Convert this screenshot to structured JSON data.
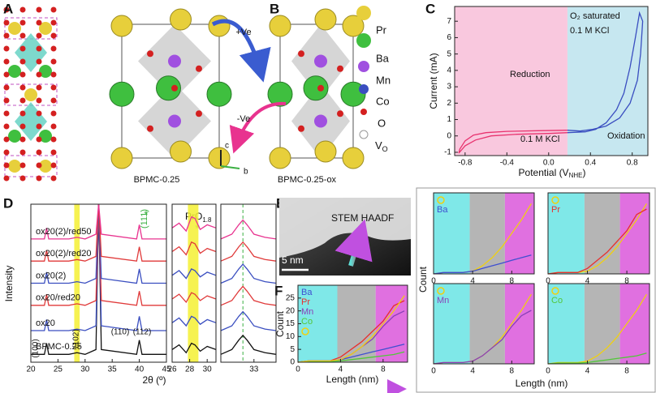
{
  "figure": {
    "panel_labels": [
      "A",
      "B",
      "C",
      "D",
      "E",
      "F"
    ],
    "structures": [
      "BPMC-0.25",
      "BPMC-0.25-ox"
    ],
    "arrows": [
      "+Ve",
      "-Ve"
    ],
    "axes": [
      "c",
      "b"
    ],
    "elements": [
      "Pr",
      "Ba",
      "Mn",
      "Co",
      "O"
    ],
    "vacancy": {
      "main": "V",
      "sub": "O"
    },
    "stem": "STEM HAADF",
    "scale": "5 nm",
    "d_labels": {
      "plane": "(111)",
      "star": "*",
      "phase": "PrO",
      "phase_sub": "1.8",
      "star2": "*"
    },
    "right_panel": {
      "ylabel": "Count",
      "xlabel": "Length (nm)"
    }
  },
  "chart_data": [
    {
      "type": "line",
      "ylabel": "Current (mA)",
      "xlabel": "Potential (V",
      "xlabel_sub": "NHE",
      "xlabel_end": ")",
      "xlim": [
        -0.9,
        0.95
      ],
      "ylim": [
        -1.2,
        7.9
      ],
      "xticks": [
        -0.8,
        -0.4,
        {
          "value": 0,
          "label": "0.0"
        },
        0.4,
        0.8
      ],
      "yticks": [
        -1,
        0,
        1,
        2,
        3,
        4,
        5,
        6,
        7
      ],
      "regions": [
        {
          "range": [
            -0.9,
            0.18
          ],
          "color": "#f9c8de"
        },
        {
          "range": [
            0.18,
            0.95
          ],
          "color": "#c6e7f0"
        }
      ],
      "annotations": [
        "Reduction",
        "Oxidation",
        "0.1 M KCl",
        "O₂ saturated",
        "0.1 M KCl"
      ],
      "series": [
        {
          "color": "#e8336f",
          "x": [
            0.18,
            -0.1,
            -0.4,
            -0.6,
            -0.72,
            -0.8,
            -0.85,
            -0.86,
            -0.8,
            -0.7,
            -0.55,
            -0.3,
            0,
            0.18
          ],
          "values": [
            0.35,
            0.32,
            0.28,
            0.2,
            0.05,
            -0.3,
            -0.8,
            -1.05,
            -0.6,
            -0.25,
            0.0,
            0.1,
            0.15,
            0.2
          ]
        },
        {
          "color": "#3a4ec0",
          "x": [
            0.18,
            0.35,
            0.45,
            0.55,
            0.65,
            0.72,
            0.78,
            0.83,
            0.87,
            0.9,
            0.88,
            0.85,
            0.78,
            0.68,
            0.55,
            0.42,
            0.3,
            0.18
          ],
          "values": [
            0.2,
            0.25,
            0.4,
            0.8,
            1.6,
            2.6,
            4.2,
            6.0,
            7.5,
            7.0,
            5.0,
            3.4,
            2.0,
            1.1,
            0.6,
            0.4,
            0.3,
            0.35
          ]
        }
      ]
    },
    {
      "type": "line",
      "ylabel": "Intensity",
      "xlabel": "2θ (º)",
      "xlim": [
        20,
        45
      ],
      "ylim": [
        0,
        100
      ],
      "xticks": [
        20,
        25,
        30,
        35,
        40,
        45
      ],
      "highlight": {
        "range": [
          28,
          29
        ],
        "color": "#f5f033"
      },
      "peak_labels": [
        "(100)",
        "(102)",
        "(110)",
        "(112)"
      ],
      "series_labels": true,
      "x": [
        20,
        22.5,
        22.9,
        23.3,
        27,
        28.5,
        30,
        32,
        32.5,
        33,
        39.5,
        40,
        40.5,
        45
      ],
      "series": [
        {
          "name": "BPMC-0.25",
          "color": "#111111",
          "values": [
            5,
            5,
            12,
            5,
            5,
            6,
            5,
            8,
            100,
            8,
            5,
            14,
            5,
            5
          ]
        },
        {
          "name": "ox20",
          "color": "#3a4ec0",
          "values": [
            20,
            20,
            27,
            20,
            20,
            21,
            20,
            23,
            100,
            23,
            20,
            29,
            20,
            20
          ]
        },
        {
          "name": "ox20/red20",
          "color": "#e03a3a",
          "values": [
            36,
            36,
            43,
            36,
            36,
            37,
            36,
            39,
            100,
            39,
            36,
            45,
            36,
            36
          ]
        },
        {
          "name": "ox20(2)",
          "color": "#3a4ec0",
          "values": [
            50,
            50,
            57,
            50,
            50,
            51,
            50,
            53,
            100,
            53,
            50,
            59,
            50,
            50
          ]
        },
        {
          "name": "ox20(2)/red20",
          "color": "#e03a3a",
          "values": [
            64,
            64,
            71,
            64,
            64,
            65,
            64,
            67,
            100,
            67,
            64,
            73,
            64,
            64
          ]
        },
        {
          "name": "ox20(2)/red50",
          "color": "#e8338f",
          "values": [
            78,
            78,
            85,
            78,
            78,
            79,
            78,
            81,
            100,
            81,
            78,
            87,
            78,
            78
          ]
        }
      ]
    },
    {
      "type": "line",
      "xlim": [
        26,
        31
      ],
      "ylim": [
        0,
        100
      ],
      "xticks": [
        26,
        28,
        30
      ],
      "highlight": {
        "range": [
          27.8,
          29
        ],
        "color": "#f5f033"
      },
      "x": [
        26,
        26.8,
        27.6,
        28.2,
        28.6,
        29.2,
        30,
        31
      ],
      "series": [
        {
          "color": "#111111",
          "values": [
            8,
            11,
            6,
            12,
            11,
            7,
            10,
            8
          ]
        },
        {
          "color": "#3a4ec0",
          "values": [
            25,
            28,
            23,
            29,
            28,
            24,
            27,
            25
          ]
        },
        {
          "color": "#e03a3a",
          "values": [
            40,
            43,
            38,
            44,
            43,
            39,
            42,
            40
          ]
        },
        {
          "color": "#3a4ec0",
          "values": [
            55,
            58,
            53,
            59,
            58,
            54,
            57,
            55
          ]
        },
        {
          "color": "#e03a3a",
          "values": [
            70,
            73,
            68,
            76,
            75,
            69,
            72,
            70
          ]
        },
        {
          "color": "#e8338f",
          "values": [
            85,
            88,
            83,
            92,
            91,
            84,
            87,
            85
          ]
        }
      ]
    },
    {
      "type": "line",
      "xlim": [
        31.8,
        33.8
      ],
      "ylim": [
        0,
        100
      ],
      "xticks": [
        33
      ],
      "reference_line": {
        "value": 32.6,
        "color": "#3cb043"
      },
      "x": [
        31.8,
        32.2,
        32.45,
        32.6,
        32.75,
        33.0,
        33.4,
        33.8
      ],
      "series": [
        {
          "color": "#111111",
          "values": [
            5,
            8,
            14,
            17,
            14,
            8,
            6,
            5
          ]
        },
        {
          "color": "#3a4ec0",
          "values": [
            20,
            23,
            29,
            32,
            29,
            23,
            21,
            20
          ]
        },
        {
          "color": "#e03a3a",
          "values": [
            36,
            39,
            45,
            48,
            45,
            39,
            37,
            36
          ]
        },
        {
          "color": "#3a4ec0",
          "values": [
            50,
            53,
            59,
            62,
            59,
            53,
            51,
            50
          ]
        },
        {
          "color": "#e03a3a",
          "values": [
            64,
            67,
            73,
            76,
            73,
            67,
            65,
            64
          ]
        },
        {
          "color": "#e8338f",
          "values": [
            78,
            81,
            87,
            90,
            87,
            81,
            79,
            78
          ]
        }
      ]
    },
    {
      "type": "line",
      "ylabel": "Count",
      "xlabel": "Length (nm)",
      "xlim": [
        0,
        10.3
      ],
      "ylim": [
        0,
        30
      ],
      "xticks": [
        0,
        4,
        8
      ],
      "yticks": [
        0,
        5,
        10,
        15,
        20,
        25
      ],
      "legend": true,
      "regions": [
        {
          "range": [
            0,
            3.7
          ],
          "color": "#7fe8e8"
        },
        {
          "range": [
            3.7,
            7.3
          ],
          "color": "#b5b5b5"
        },
        {
          "range": [
            7.3,
            10.3
          ],
          "color": "#e070e0"
        }
      ],
      "x": [
        0,
        1,
        2,
        3,
        4,
        5,
        6,
        7,
        8,
        9,
        10
      ],
      "series": [
        {
          "name": "Ba",
          "color": "#3f4fd0",
          "values": [
            0,
            0.5,
            0.5,
            0.5,
            1,
            2,
            3,
            4,
            5,
            6,
            7
          ]
        },
        {
          "name": "Pr",
          "color": "#e8302e",
          "values": [
            0,
            0.5,
            0.5,
            0.5,
            2,
            5,
            8,
            12,
            16,
            22,
            24
          ]
        },
        {
          "name": "Mn",
          "color": "#8a3fb8",
          "values": [
            0,
            0.5,
            0.5,
            0.5,
            1,
            3,
            6,
            9,
            14,
            18,
            20
          ]
        },
        {
          "name": "Co",
          "color": "#52c73a",
          "values": [
            0,
            0.3,
            0.3,
            0.3,
            0.5,
            1,
            1.5,
            2,
            2.5,
            3,
            4
          ]
        },
        {
          "color": "#f0d010",
          "values": [
            0,
            0.5,
            0.5,
            0.5,
            1,
            3,
            6,
            10,
            15,
            20,
            26
          ]
        }
      ]
    },
    {
      "type": "line",
      "xlim": [
        0,
        10.3
      ],
      "ylim": [
        0,
        30
      ],
      "xticks": [
        0,
        4,
        8
      ],
      "legend": true,
      "regions": [
        {
          "range": [
            0,
            3.7
          ],
          "color": "#7fe8e8"
        },
        {
          "range": [
            3.7,
            7.3
          ],
          "color": "#b5b5b5"
        },
        {
          "range": [
            7.3,
            10.3
          ],
          "color": "#e070e0"
        }
      ],
      "x": [
        0,
        1,
        2,
        3,
        4,
        5,
        6,
        7,
        8,
        9,
        10
      ],
      "series": [
        {
          "color": "#f0d010",
          "values": [
            0,
            0.5,
            0.5,
            0.5,
            1,
            3,
            6,
            10,
            15,
            20,
            26
          ]
        },
        {
          "name": "Ba",
          "color": "#3f4fd0",
          "values": [
            0,
            0.5,
            0.5,
            0.5,
            1,
            2,
            3,
            4,
            5,
            6,
            7
          ]
        }
      ]
    },
    {
      "type": "line",
      "xlim": [
        0,
        10.3
      ],
      "ylim": [
        0,
        30
      ],
      "xticks": [
        0,
        4,
        8
      ],
      "legend": true,
      "regions": [
        {
          "range": [
            0,
            3.7
          ],
          "color": "#7fe8e8"
        },
        {
          "range": [
            3.7,
            7.3
          ],
          "color": "#b5b5b5"
        },
        {
          "range": [
            7.3,
            10.3
          ],
          "color": "#e070e0"
        }
      ],
      "x": [
        0,
        1,
        2,
        3,
        4,
        5,
        6,
        7,
        8,
        9,
        10
      ],
      "series": [
        {
          "color": "#f0d010",
          "values": [
            0,
            0.5,
            0.5,
            0.5,
            1,
            3,
            6,
            10,
            15,
            20,
            26
          ]
        },
        {
          "name": "Pr",
          "color": "#e8302e",
          "values": [
            0,
            0.5,
            0.5,
            0.5,
            2,
            5,
            8,
            12,
            16,
            22,
            24
          ]
        }
      ]
    },
    {
      "type": "line",
      "xlim": [
        0,
        10.3
      ],
      "ylim": [
        0,
        30
      ],
      "xticks": [
        0,
        4,
        8
      ],
      "legend": true,
      "regions": [
        {
          "range": [
            0,
            3.7
          ],
          "color": "#7fe8e8"
        },
        {
          "range": [
            3.7,
            7.3
          ],
          "color": "#b5b5b5"
        },
        {
          "range": [
            7.3,
            10.3
          ],
          "color": "#e070e0"
        }
      ],
      "x": [
        0,
        1,
        2,
        3,
        4,
        5,
        6,
        7,
        8,
        9,
        10
      ],
      "series": [
        {
          "color": "#f0d010",
          "values": [
            0,
            0.5,
            0.5,
            0.5,
            1,
            3,
            6,
            10,
            15,
            20,
            26
          ]
        },
        {
          "name": "Mn",
          "color": "#8a3fb8",
          "values": [
            0,
            0.5,
            0.5,
            0.5,
            1,
            3,
            6,
            9,
            14,
            18,
            20
          ]
        }
      ]
    },
    {
      "type": "line",
      "xlim": [
        0,
        10.3
      ],
      "ylim": [
        0,
        30
      ],
      "xticks": [
        0,
        4,
        8
      ],
      "legend": true,
      "regions": [
        {
          "range": [
            0,
            3.7
          ],
          "color": "#7fe8e8"
        },
        {
          "range": [
            3.7,
            7.3
          ],
          "color": "#b5b5b5"
        },
        {
          "range": [
            7.3,
            10.3
          ],
          "color": "#e070e0"
        }
      ],
      "x": [
        0,
        1,
        2,
        3,
        4,
        5,
        6,
        7,
        8,
        9,
        10
      ],
      "series": [
        {
          "color": "#f0d010",
          "values": [
            0,
            0.5,
            0.5,
            0.5,
            1,
            3,
            6,
            10,
            15,
            20,
            26
          ]
        },
        {
          "name": "Co",
          "color": "#52c73a",
          "values": [
            0,
            0.3,
            0.3,
            0.3,
            0.5,
            1,
            1.5,
            2,
            2.5,
            3,
            4
          ]
        }
      ]
    }
  ]
}
